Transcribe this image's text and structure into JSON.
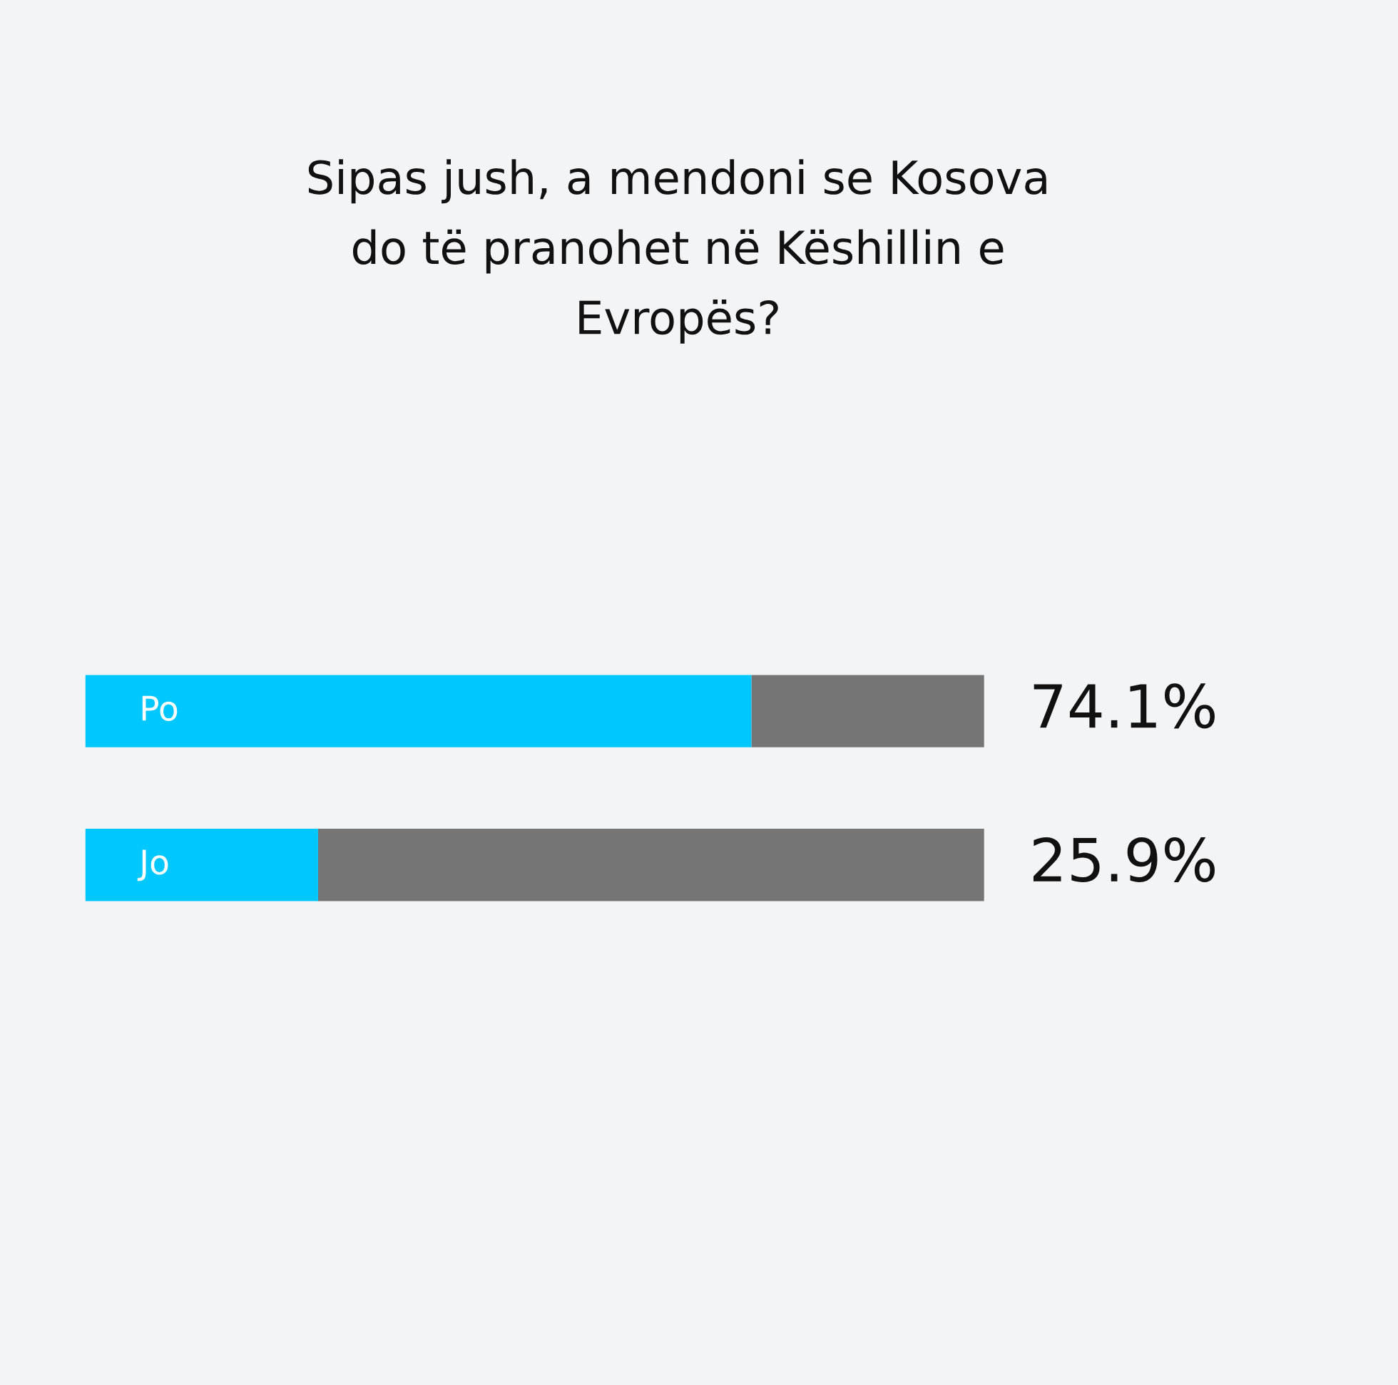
{
  "chart_data": {
    "type": "bar",
    "orientation": "horizontal",
    "stacked": true,
    "title": "Sipas jush, a mendoni se Kosova\ndo të pranohet në Këshillin e\nEvropës?",
    "categories": [
      "Po",
      "Jo"
    ],
    "series": [
      {
        "color": "#00c8ff",
        "values": [
          74.1,
          25.9
        ],
        "value_labels": [
          "74.1%",
          "25.9%"
        ]
      },
      {
        "color": "#757575",
        "values": [
          25.9,
          74.1
        ]
      }
    ],
    "xlim": [
      0,
      100
    ],
    "tick_labels": false,
    "grid": false,
    "legend": false
  }
}
